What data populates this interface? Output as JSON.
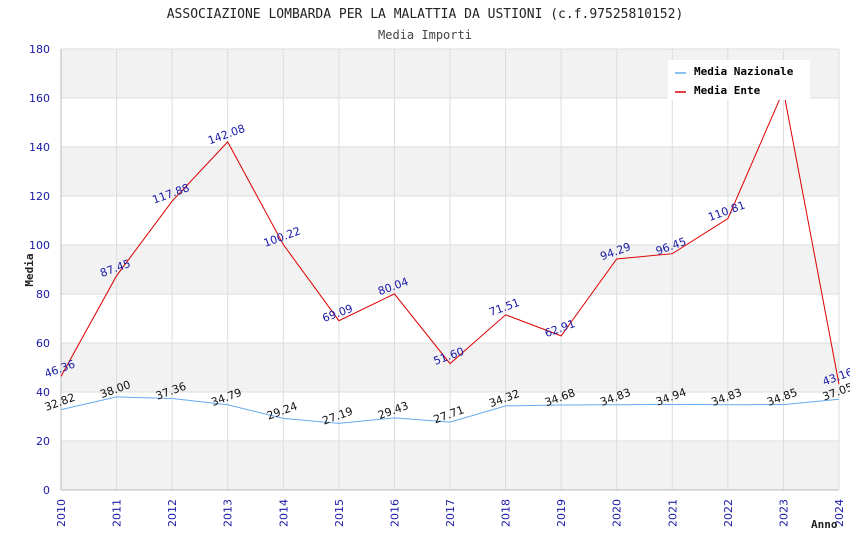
{
  "chart_data": {
    "type": "line",
    "title": "ASSOCIAZIONE LOMBARDA PER LA MALATTIA DA USTIONI (c.f.97525810152)",
    "subtitle": "Media Importi",
    "xlabel": "Anno",
    "ylabel": "Media",
    "ylim": [
      0,
      180
    ],
    "yticks": [
      0,
      20,
      40,
      60,
      80,
      100,
      120,
      140,
      160,
      180
    ],
    "x": [
      "2010",
      "2011",
      "2012",
      "2013",
      "2014",
      "2015",
      "2016",
      "2017",
      "2018",
      "2019",
      "2020",
      "2021",
      "2022",
      "2023",
      "2024"
    ],
    "legend_position": "top-right",
    "series": [
      {
        "name": "Media Nazionale",
        "color": "#66aaee",
        "values": [
          32.82,
          38.0,
          37.36,
          34.79,
          29.24,
          27.19,
          29.43,
          27.71,
          34.32,
          34.68,
          34.83,
          34.94,
          34.83,
          34.85,
          37.05
        ],
        "labels": [
          "32.82",
          "38.00",
          "37.36",
          "34.79",
          "29.24",
          "27.19",
          "29.43",
          "27.71",
          "34.32",
          "34.68",
          "34.83",
          "34.94",
          "34.83",
          "34.85",
          "37.05"
        ]
      },
      {
        "name": "Media Ente",
        "color": "#dd0000",
        "values": [
          46.36,
          87.45,
          117.88,
          142.08,
          100.22,
          69.09,
          80.04,
          51.6,
          71.51,
          62.91,
          94.29,
          96.45,
          110.81,
          163.0,
          43.16
        ],
        "labels": [
          "46.36",
          "87.45",
          "117.88",
          "142.08",
          "100.22",
          "69.09",
          "80.04",
          "51.60",
          "71.51",
          "62.91",
          "94.29",
          "96.45",
          "110.81",
          "",
          "43.16"
        ]
      }
    ]
  }
}
